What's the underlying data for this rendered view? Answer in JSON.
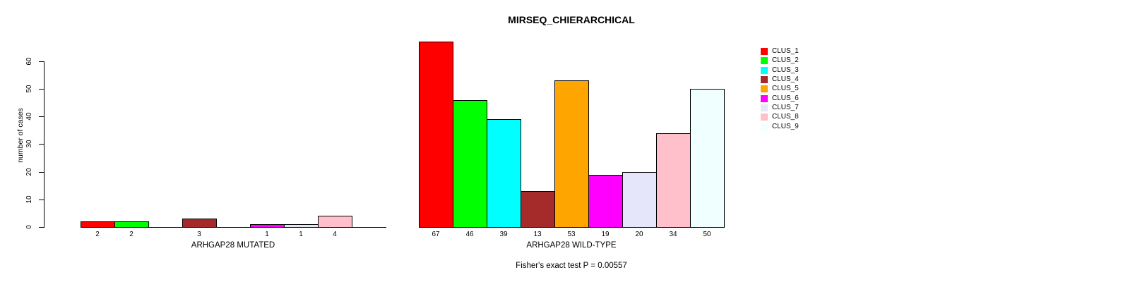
{
  "title": "MIRSEQ_CHIERARCHICAL",
  "subtitle": "Fisher's exact test P = 0.00557",
  "ylabel": "number of cases",
  "legend": {
    "position": "right",
    "items": [
      {
        "label": "CLUS_1",
        "color": "#FF0000"
      },
      {
        "label": "CLUS_2",
        "color": "#00FF00"
      },
      {
        "label": "CLUS_3",
        "color": "#00FFFF"
      },
      {
        "label": "CLUS_4",
        "color": "#A52A2A"
      },
      {
        "label": "CLUS_5",
        "color": "#FFA500"
      },
      {
        "label": "CLUS_6",
        "color": "#FF00FF"
      },
      {
        "label": "CLUS_7",
        "color": "#E6E6FA"
      },
      {
        "label": "CLUS_8",
        "color": "#FFC0CB"
      },
      {
        "label": "CLUS_9",
        "color": "#F0FFFF"
      }
    ]
  },
  "chart_data": {
    "type": "bar",
    "title": "MIRSEQ_CHIERARCHICAL",
    "ylabel": "number of cases",
    "ylim": [
      0,
      67
    ],
    "yticks": [
      0,
      10,
      20,
      30,
      40,
      50,
      60
    ],
    "grid": false,
    "legend_position": "right",
    "annotation": "Fisher's exact test P = 0.00557",
    "categories": [
      "CLUS_1",
      "CLUS_2",
      "CLUS_3",
      "CLUS_4",
      "CLUS_5",
      "CLUS_6",
      "CLUS_7",
      "CLUS_8",
      "CLUS_9"
    ],
    "colors": [
      "#FF0000",
      "#00FF00",
      "#00FFFF",
      "#A52A2A",
      "#FFA500",
      "#FF00FF",
      "#E6E6FA",
      "#FFC0CB",
      "#F0FFFF"
    ],
    "bar_border_color": "#000000",
    "groups": [
      {
        "label": "ARHGAP28 MUTATED",
        "values": [
          2,
          2,
          0,
          3,
          0,
          1,
          1,
          4,
          0
        ]
      },
      {
        "label": "ARHGAP28 WILD-TYPE",
        "values": [
          67,
          46,
          39,
          13,
          53,
          19,
          20,
          34,
          50
        ]
      }
    ]
  }
}
